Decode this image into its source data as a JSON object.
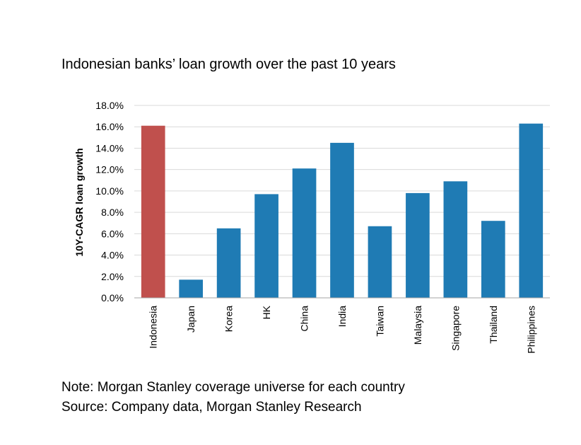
{
  "chart_data": {
    "type": "bar",
    "title": "Indonesian banks’ loan growth over the past 10 years",
    "ylabel": "10Y-CAGR loan growth",
    "xlabel": "",
    "ylim": [
      0,
      18
    ],
    "y_ticks": [
      "0.0%",
      "2.0%",
      "4.0%",
      "6.0%",
      "8.0%",
      "10.0%",
      "12.0%",
      "14.0%",
      "16.0%",
      "18.0%"
    ],
    "grid": "horizontal",
    "legend": "none",
    "categories": [
      "Indonesia",
      "Japan",
      "Korea",
      "HK",
      "China",
      "India",
      "Taiwan",
      "Malaysia",
      "Singapore",
      "Thailand",
      "Philippines"
    ],
    "values": [
      16.1,
      1.7,
      6.5,
      9.7,
      12.1,
      14.5,
      6.7,
      9.8,
      10.9,
      7.2,
      16.3
    ],
    "colors": {
      "highlight": "#C0504D",
      "default": "#1F7BB4",
      "grid": "#D9D9D9",
      "axis": "#A6A6A6"
    },
    "highlight_category": "Indonesia"
  },
  "notes": {
    "note": "Note: Morgan Stanley coverage universe for each country",
    "source": "Source: Company data, Morgan Stanley Research"
  }
}
